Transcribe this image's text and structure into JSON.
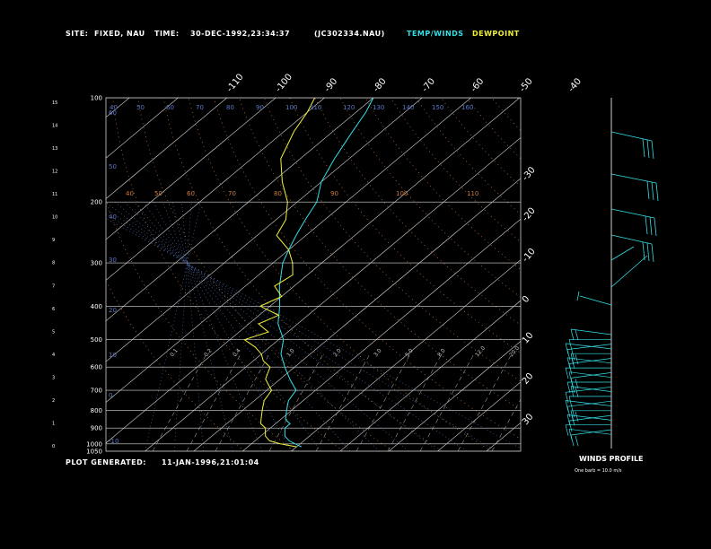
{
  "header": {
    "site_label": "SITE:",
    "site_value": "FIXED, NAU",
    "time_label": "TIME:",
    "time_value": "30-DEC-1992,23:34:37",
    "file": "(JC302334.NAU)",
    "legend_temp": "TEMP/WINDS",
    "legend_dew": "DEWPOINT"
  },
  "footer": {
    "generated_label": "PLOT GENERATED:",
    "generated_value": "11-JAN-1996,21:01:04"
  },
  "winds": {
    "title": "WINDS PROFILE",
    "note": "One barb = 10.0 m/s"
  },
  "colors": {
    "temp": "#33e0e8",
    "dew": "#f2f23a",
    "isotherm": "#d8d8d8",
    "isobar": "#d8d8d8",
    "dry_adiabat": "#d07a3c",
    "moist_adiabat": "#5a78c8",
    "mixing_ratio": "#c8c8c8",
    "text": "#ffffff"
  },
  "chart_data": {
    "type": "line",
    "title": "",
    "pressure_ticks": [
      "100",
      "200",
      "300",
      "400",
      "500",
      "600",
      "700",
      "800",
      "900",
      "1000",
      "1050"
    ],
    "height_ticks": [
      "15",
      "14",
      "13",
      "12",
      "11",
      "10",
      "9",
      "8",
      "7",
      "6",
      "5",
      "4",
      "3",
      "2",
      "1",
      "0"
    ],
    "isotherm_top_labels": [
      "-110",
      "-100",
      "-90",
      "-80",
      "-70",
      "-60",
      "-50",
      "-40"
    ],
    "isotherm_right_labels": [
      "-30",
      "-20",
      "-10",
      "0",
      "10",
      "20",
      "30"
    ],
    "dry_adiabat_labels": [
      "40",
      "50",
      "60",
      "70",
      "80",
      "90",
      "100",
      "110",
      "120",
      "130",
      "140",
      "150",
      "160"
    ],
    "moist_adiabat_labels": [
      "60",
      "50",
      "40",
      "30",
      "20",
      "10",
      "0",
      "-10",
      "-20",
      "-30",
      "-40",
      "-50",
      "-60"
    ],
    "mixing_ratio_labels": [
      "0.1",
      "0.2",
      "0.4",
      "1.0",
      "2.0",
      "3.0",
      "5.0",
      "8.0",
      "12.0",
      "20.0"
    ],
    "ylim_hPa": [
      1050,
      100
    ],
    "xlim_T_at_1050": [
      -48,
      37
    ],
    "skew_T_per_decade": 85,
    "series": [
      {
        "name": "TEMP/WINDS",
        "pressure": [
          1020,
          1000,
          980,
          950,
          925,
          900,
          875,
          850,
          800,
          775,
          750,
          700,
          650,
          600,
          550,
          500,
          450,
          400,
          350,
          300,
          275,
          250,
          225,
          200,
          175,
          150,
          125,
          110,
          100
        ],
        "temp": [
          -9,
          -11,
          -13,
          -15,
          -16,
          -17,
          -17,
          -19,
          -21,
          -22,
          -23,
          -24,
          -28,
          -32,
          -36,
          -39,
          -44,
          -48,
          -53,
          -58,
          -60,
          -62,
          -64,
          -66,
          -70,
          -73,
          -76,
          -78,
          -80
        ]
      },
      {
        "name": "DEWPOINT",
        "pressure": [
          1020,
          1000,
          980,
          950,
          925,
          900,
          875,
          850,
          800,
          775,
          750,
          700,
          675,
          650,
          625,
          600,
          575,
          550,
          525,
          500,
          475,
          450,
          425,
          400,
          375,
          350,
          325,
          300,
          275,
          250,
          225,
          200,
          175,
          150,
          125,
          110,
          100
        ],
        "temp": [
          -10,
          -14,
          -17,
          -19,
          -20,
          -21,
          -23,
          -24,
          -26,
          -27,
          -28,
          -29,
          -31,
          -33,
          -34,
          -35,
          -38,
          -40,
          -43,
          -47,
          -44,
          -48,
          -46,
          -52,
          -50,
          -54,
          -53,
          -56,
          -60,
          -66,
          -68,
          -72,
          -78,
          -84,
          -88,
          -90,
          -92
        ]
      }
    ]
  }
}
